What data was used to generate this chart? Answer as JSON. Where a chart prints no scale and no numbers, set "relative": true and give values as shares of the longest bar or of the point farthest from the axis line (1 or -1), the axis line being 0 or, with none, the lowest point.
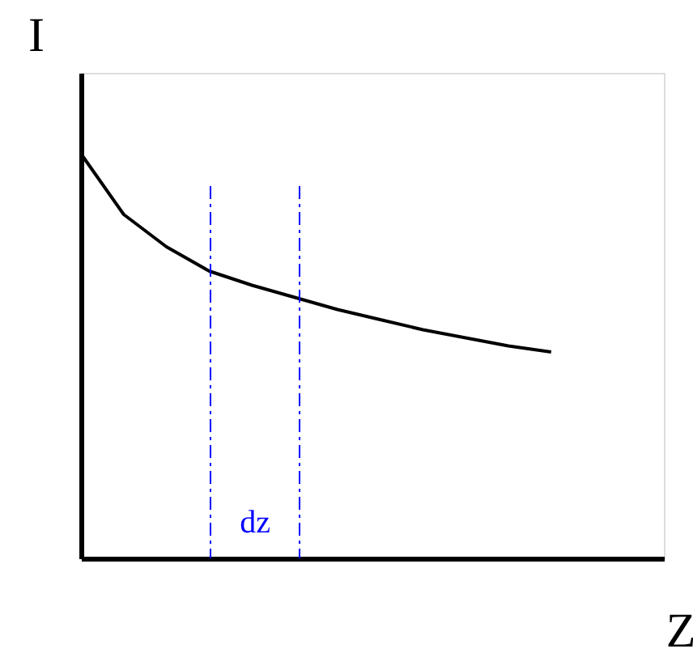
{
  "chart_data": {
    "type": "line",
    "relative": true,
    "xlabel": "Z",
    "ylabel": "I",
    "categories": [
      null,
      null,
      null,
      null,
      null,
      null,
      null,
      null,
      null,
      null,
      null,
      null
    ],
    "series": [
      {
        "color": "#000000",
        "values": [
          1.0,
          0.85,
          0.77,
          0.71,
          0.675,
          0.645,
          0.615,
          0.59,
          0.565,
          0.545,
          0.525,
          0.51
        ]
      }
    ],
    "annotations": [
      "dz"
    ],
    "marker": "none",
    "line_style": "solid"
  }
}
